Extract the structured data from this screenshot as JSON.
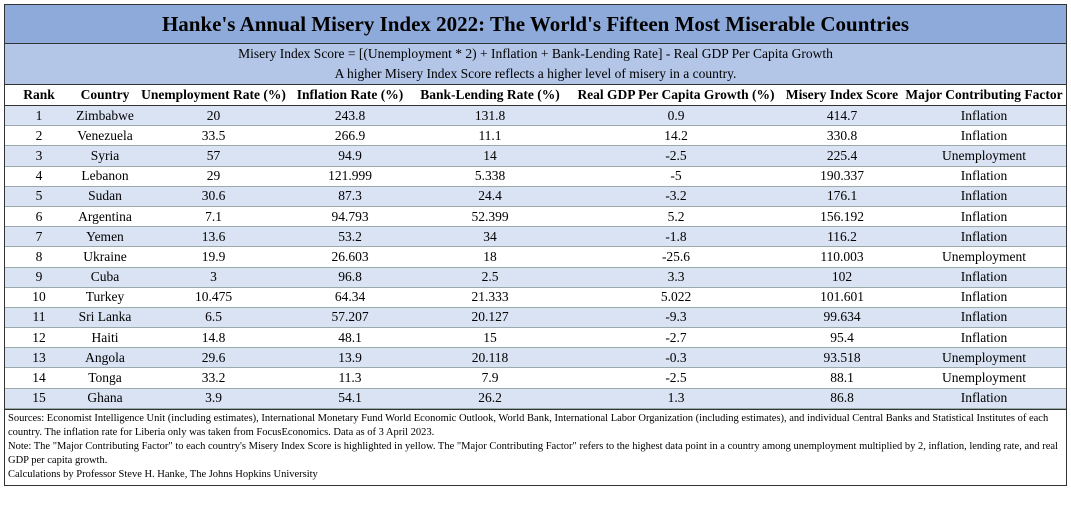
{
  "header": {
    "title": "Hanke's Annual Misery Index 2022: The World's Fifteen Most Miserable Countries",
    "formula": "Misery Index Score = [(Unemployment * 2) + Inflation + Bank-Lending Rate] - Real GDP Per Capita Growth",
    "subtitle": "A higher Misery Index Score reflects a higher level of misery in a country."
  },
  "table": {
    "columns": [
      "Rank",
      "Country",
      "Unemployment Rate (%)",
      "Inflation Rate (%)",
      "Bank-Lending Rate (%)",
      "Real GDP Per Capita Growth (%)",
      "Misery Index Score",
      "Major Contributing Factor"
    ],
    "rows": [
      [
        1,
        "Zimbabwe",
        20,
        243.8,
        131.8,
        0.9,
        414.7,
        "Inflation"
      ],
      [
        2,
        "Venezuela",
        33.5,
        266.9,
        11.1,
        14.2,
        330.8,
        "Inflation"
      ],
      [
        3,
        "Syria",
        57,
        94.9,
        14,
        -2.5,
        225.4,
        "Unemployment"
      ],
      [
        4,
        "Lebanon",
        29,
        121.999,
        5.338,
        -5,
        190.337,
        "Inflation"
      ],
      [
        5,
        "Sudan",
        30.6,
        87.3,
        24.4,
        -3.2,
        176.1,
        "Inflation"
      ],
      [
        6,
        "Argentina",
        7.1,
        94.793,
        52.399,
        5.2,
        156.192,
        "Inflation"
      ],
      [
        7,
        "Yemen",
        13.6,
        53.2,
        34,
        -1.8,
        116.2,
        "Inflation"
      ],
      [
        8,
        "Ukraine",
        19.9,
        26.603,
        18,
        -25.6,
        110.003,
        "Unemployment"
      ],
      [
        9,
        "Cuba",
        3,
        96.8,
        2.5,
        3.3,
        102,
        "Inflation"
      ],
      [
        10,
        "Turkey",
        10.475,
        64.34,
        21.333,
        5.022,
        101.601,
        "Inflation"
      ],
      [
        11,
        "Sri Lanka",
        6.5,
        57.207,
        20.127,
        -9.3,
        99.634,
        "Inflation"
      ],
      [
        12,
        "Haiti",
        14.8,
        48.1,
        15,
        -2.7,
        95.4,
        "Inflation"
      ],
      [
        13,
        "Angola",
        29.6,
        13.9,
        20.118,
        -0.3,
        93.518,
        "Unemployment"
      ],
      [
        14,
        "Tonga",
        33.2,
        11.3,
        7.9,
        -2.5,
        88.1,
        "Unemployment"
      ],
      [
        15,
        "Ghana",
        3.9,
        54.1,
        26.2,
        1.3,
        86.8,
        "Inflation"
      ]
    ]
  },
  "notes": [
    "Sources: Economist Intelligence Unit (including estimates), International Monetary Fund World Economic Outlook, World Bank, International Labor Organization (including estimates), and individual Central Banks and Statistical Institutes of each country. The inflation rate for Liberia only was taken from FocusEconomics. Data as of 3 April 2023.",
    "Note: The \"Major Contributing Factor\" to each country's Misery Index Score is highlighted in yellow. The \"Major Contributing Factor\" refers to the highest data point in a country among unemployment multiplied by 2, inflation, lending rate, and real GDP per capita growth.",
    "Calculations by Professor Steve H. Hanke, The Johns Hopkins University"
  ]
}
